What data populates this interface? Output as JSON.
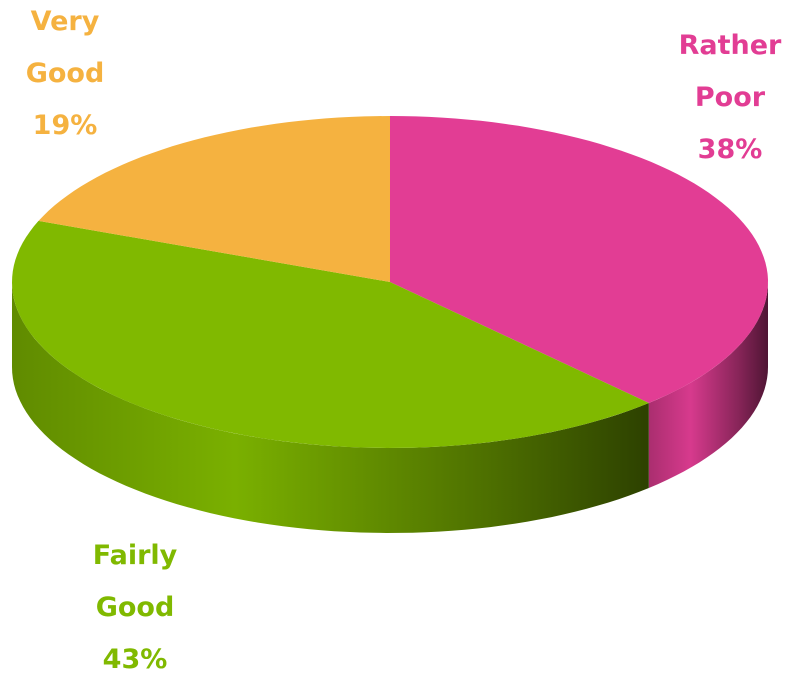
{
  "chart_data": {
    "type": "pie3d",
    "categories": [
      "Rather Poor",
      "Fairly Good",
      "Very Good"
    ],
    "values": [
      38,
      43,
      19
    ],
    "value_labels": [
      "38%",
      "43%",
      "19%"
    ],
    "colors": [
      "#e23d94",
      "#80b900",
      "#f5b240"
    ]
  }
}
